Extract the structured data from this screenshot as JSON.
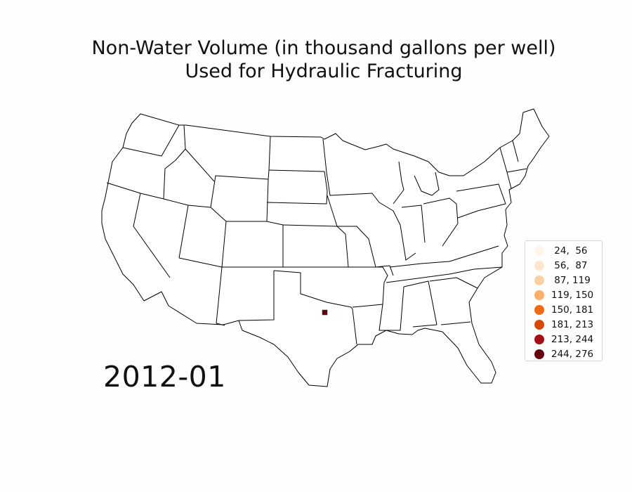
{
  "title": {
    "line1": "Non-Water Volume (in thousand gallons per well)",
    "line2": "Used for Hydraulic Fracturing"
  },
  "date": "2012-01",
  "legend": {
    "items": [
      {
        "label": " 24,  56",
        "color": "#fff5eb"
      },
      {
        "label": " 56,  87",
        "color": "#fee6ce"
      },
      {
        "label": " 87, 119",
        "color": "#fdd0a2"
      },
      {
        "label": "119, 150",
        "color": "#fdae6b"
      },
      {
        "label": "150, 181",
        "color": "#f16913"
      },
      {
        "label": "181, 213",
        "color": "#d94801"
      },
      {
        "label": "213, 244",
        "color": "#a50f15"
      },
      {
        "label": "244, 276",
        "color": "#67000d"
      }
    ]
  },
  "markers": [
    {
      "state": "Texas",
      "range": "244, 276",
      "color": "#67000d",
      "shape": "square"
    }
  ],
  "map": {
    "region": "United States (lower 48)",
    "fill": "#ffffff",
    "stroke": "#000000"
  }
}
